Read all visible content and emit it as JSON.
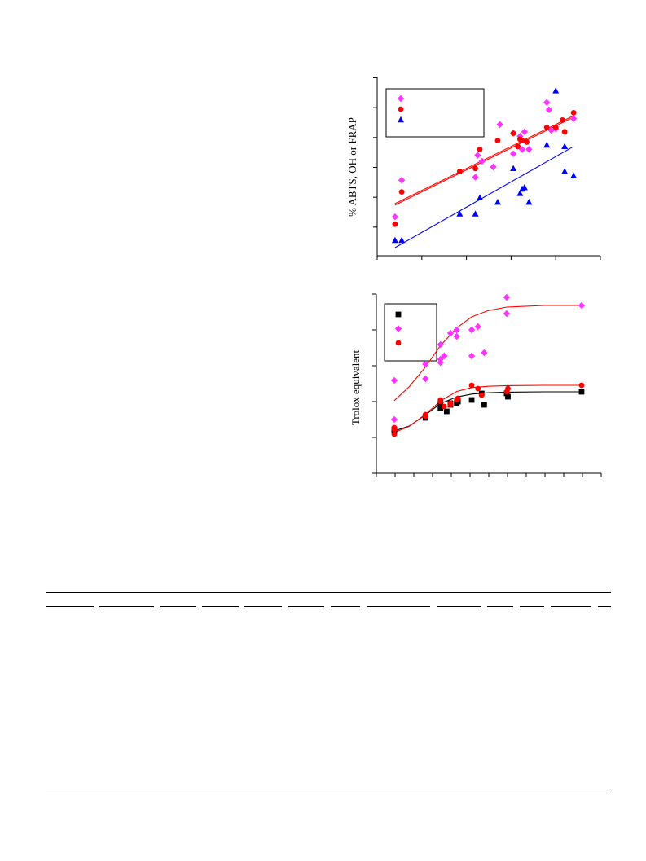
{
  "chart_data": [
    {
      "type": "scatter",
      "title": "",
      "xlabel": "",
      "ylabel": "% ABTS, OH or FRAP",
      "xlim": [
        0,
        100
      ],
      "ylim": [
        0,
        120
      ],
      "legend_placement": "top-left",
      "series": [
        {
          "marker": "diamond",
          "color": "#ff33ff",
          "x": [
            8,
            11,
            44,
            45,
            47,
            52,
            55,
            61,
            61,
            64,
            65,
            66,
            68,
            76,
            77,
            78,
            80,
            88
          ],
          "y": [
            16,
            41,
            43,
            58,
            54,
            50,
            79,
            59,
            73,
            71,
            62,
            74,
            62,
            94,
            89,
            75,
            76,
            83
          ],
          "fit": {
            "x": [
              8,
              88
            ],
            "y": [
              25,
              85
            ]
          }
        },
        {
          "marker": "circle",
          "color": "#ff0000",
          "x": [
            8,
            11,
            37,
            44,
            46,
            54,
            61,
            63,
            64,
            65,
            67,
            76,
            80,
            83,
            84,
            88
          ],
          "y": [
            11,
            33,
            47,
            49,
            62,
            68,
            73,
            64,
            69,
            68,
            67,
            77,
            77,
            82,
            74,
            87
          ],
          "fit": {
            "x": [
              8,
              88
            ],
            "y": [
              24,
              84
            ]
          }
        },
        {
          "marker": "triangle",
          "color": "#0000ff",
          "x": [
            8,
            11,
            37,
            44,
            46,
            54,
            61,
            64,
            65,
            66,
            68,
            76,
            80,
            84,
            84,
            88
          ],
          "y": [
            0,
            0,
            18,
            18,
            29,
            26,
            49,
            32,
            35,
            36,
            26,
            65,
            102,
            64,
            47,
            44
          ],
          "fit": {
            "x": [
              8,
              88
            ],
            "y": [
              -5,
              64
            ]
          }
        }
      ]
    },
    {
      "type": "scatter",
      "title": "",
      "xlabel": "",
      "ylabel": "Trolox equivalent",
      "xlim": [
        -5,
        160
      ],
      "ylim": [
        0,
        55
      ],
      "legend_placement": "top-left",
      "series": [
        {
          "marker": "square",
          "color": "#000000",
          "x": [
            0,
            0,
            25,
            25,
            37,
            37,
            42,
            45,
            45,
            50,
            51,
            62,
            70,
            72,
            90,
            91,
            150
          ],
          "y": [
            8,
            8.5,
            12,
            12.5,
            15,
            16.5,
            14,
            16,
            16.5,
            16.5,
            17,
            17.5,
            19.5,
            16,
            19.5,
            18.5,
            20
          ],
          "fit": {
            "x": [
              0,
              12,
              25,
              37,
              50,
              62,
              75,
              90,
              120,
              150
            ],
            "y": [
              8,
              9.5,
              12.9,
              16.4,
              18.4,
              19.3,
              19.7,
              19.9,
              20,
              20
            ]
          }
        },
        {
          "marker": "diamond",
          "color": "#ff33ff",
          "x": [
            0,
            0,
            25,
            25,
            37,
            37,
            37,
            40,
            45,
            50,
            50,
            62,
            62,
            67,
            72,
            90,
            90,
            150
          ],
          "y": [
            11.5,
            23.5,
            24,
            28.5,
            29,
            30,
            34.5,
            31,
            38,
            37,
            39,
            31,
            39,
            40,
            32,
            44,
            49,
            46.5
          ],
          "fit": {
            "x": [
              0,
              12,
              25,
              37,
              50,
              62,
              75,
              90,
              120,
              150
            ],
            "y": [
              17.3,
              21.6,
              27.6,
              34.2,
              39.6,
              43,
              44.9,
              46,
              46.5,
              46.5
            ]
          }
        },
        {
          "marker": "circle",
          "color": "#ff0000",
          "x": [
            0,
            0,
            0,
            25,
            25,
            37,
            37,
            40,
            45,
            45,
            50,
            51,
            62,
            67,
            70,
            90,
            91,
            150
          ],
          "y": [
            7,
            8.5,
            9,
            12.5,
            13,
            17,
            17.5,
            15.5,
            16,
            16.5,
            17.5,
            18,
            22,
            21,
            19,
            20,
            21,
            22
          ],
          "fit": {
            "x": [
              0,
              12,
              25,
              37,
              50,
              62,
              75,
              90,
              120,
              150
            ],
            "y": [
              7.5,
              9.4,
              13.1,
              17.2,
              20.1,
              21.3,
              21.7,
              21.9,
              22,
              22
            ]
          }
        }
      ]
    }
  ]
}
